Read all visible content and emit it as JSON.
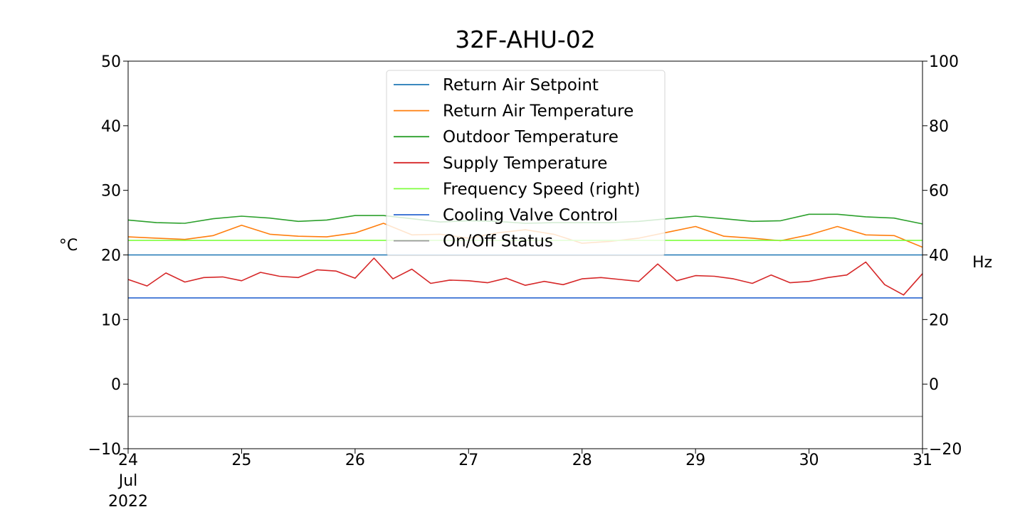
{
  "chart_data": {
    "type": "line",
    "title": "32F-AHU-02",
    "ylabel_left": "°C",
    "ylabel_right": "Hz",
    "ylim_left": [
      -10,
      50
    ],
    "ylim_right": [
      -20,
      100
    ],
    "yticks_left": [
      "−10",
      "0",
      "10",
      "20",
      "30",
      "40",
      "50"
    ],
    "yticks_right": [
      "−20",
      "0",
      "20",
      "40",
      "60",
      "80",
      "100"
    ],
    "xlim": [
      "2022-07-24",
      "2022-07-31"
    ],
    "xticks": [
      {
        "day": "24",
        "month": "Jul",
        "year": "2022"
      },
      {
        "day": "25"
      },
      {
        "day": "26"
      },
      {
        "day": "27"
      },
      {
        "day": "28"
      },
      {
        "day": "29"
      },
      {
        "day": "30"
      },
      {
        "day": "31"
      }
    ],
    "legend_position": "top-center",
    "grid": false,
    "series": [
      {
        "name": "Return Air Setpoint",
        "axis": "left",
        "color": "#1f77b4",
        "x": [
          "2022-07-24T00:00",
          "2022-07-31T00:00"
        ],
        "y": [
          20,
          20
        ]
      },
      {
        "name": "Return Air Temperature",
        "axis": "left",
        "color": "#ff7f0e",
        "x": [
          "2022-07-24T00:00",
          "2022-07-24T06:00",
          "2022-07-24T12:00",
          "2022-07-24T18:00",
          "2022-07-25T00:00",
          "2022-07-25T06:00",
          "2022-07-25T12:00",
          "2022-07-25T18:00",
          "2022-07-26T00:00",
          "2022-07-26T06:00",
          "2022-07-26T12:00",
          "2022-07-26T18:00",
          "2022-07-27T00:00",
          "2022-07-27T06:00",
          "2022-07-27T12:00",
          "2022-07-27T18:00",
          "2022-07-28T00:00",
          "2022-07-28T06:00",
          "2022-07-28T12:00",
          "2022-07-28T18:00",
          "2022-07-29T00:00",
          "2022-07-29T06:00",
          "2022-07-29T12:00",
          "2022-07-29T18:00",
          "2022-07-30T00:00",
          "2022-07-30T06:00",
          "2022-07-30T12:00",
          "2022-07-30T18:00",
          "2022-07-31T00:00"
        ],
        "y": [
          22.8,
          22.6,
          22.4,
          23.0,
          24.6,
          23.2,
          22.9,
          22.8,
          23.4,
          24.9,
          23.1,
          23.2,
          22.6,
          23.4,
          23.9,
          23.2,
          21.8,
          22.1,
          22.6,
          23.5,
          24.4,
          22.9,
          22.6,
          22.2,
          23.1,
          24.4,
          23.1,
          23.0,
          21.2
        ]
      },
      {
        "name": "Outdoor Temperature",
        "axis": "left",
        "color": "#2ca02c",
        "x": [
          "2022-07-24T00:00",
          "2022-07-24T06:00",
          "2022-07-24T12:00",
          "2022-07-24T18:00",
          "2022-07-25T00:00",
          "2022-07-25T06:00",
          "2022-07-25T12:00",
          "2022-07-25T18:00",
          "2022-07-26T00:00",
          "2022-07-26T06:00",
          "2022-07-26T12:00",
          "2022-07-26T18:00",
          "2022-07-27T00:00",
          "2022-07-27T06:00",
          "2022-07-27T12:00",
          "2022-07-27T18:00",
          "2022-07-28T00:00",
          "2022-07-28T06:00",
          "2022-07-28T12:00",
          "2022-07-28T18:00",
          "2022-07-29T00:00",
          "2022-07-29T06:00",
          "2022-07-29T12:00",
          "2022-07-29T18:00",
          "2022-07-30T00:00",
          "2022-07-30T06:00",
          "2022-07-30T12:00",
          "2022-07-30T18:00",
          "2022-07-31T00:00"
        ],
        "y": [
          25.4,
          25.0,
          24.9,
          25.6,
          26.0,
          25.7,
          25.2,
          25.4,
          26.1,
          26.1,
          25.6,
          25.1,
          25.3,
          25.2,
          24.9,
          25.0,
          25.0,
          25.0,
          25.2,
          25.6,
          26.0,
          25.6,
          25.2,
          25.3,
          26.3,
          26.3,
          25.9,
          25.7,
          24.8
        ]
      },
      {
        "name": "Supply Temperature",
        "axis": "left",
        "color": "#d62728",
        "x": [
          "2022-07-24T00:00",
          "2022-07-24T04:00",
          "2022-07-24T08:00",
          "2022-07-24T12:00",
          "2022-07-24T16:00",
          "2022-07-24T20:00",
          "2022-07-25T00:00",
          "2022-07-25T04:00",
          "2022-07-25T08:00",
          "2022-07-25T12:00",
          "2022-07-25T16:00",
          "2022-07-25T20:00",
          "2022-07-26T00:00",
          "2022-07-26T04:00",
          "2022-07-26T08:00",
          "2022-07-26T12:00",
          "2022-07-26T16:00",
          "2022-07-26T20:00",
          "2022-07-27T00:00",
          "2022-07-27T04:00",
          "2022-07-27T08:00",
          "2022-07-27T12:00",
          "2022-07-27T16:00",
          "2022-07-27T20:00",
          "2022-07-28T00:00",
          "2022-07-28T04:00",
          "2022-07-28T08:00",
          "2022-07-28T12:00",
          "2022-07-28T16:00",
          "2022-07-28T20:00",
          "2022-07-29T00:00",
          "2022-07-29T04:00",
          "2022-07-29T08:00",
          "2022-07-29T12:00",
          "2022-07-29T16:00",
          "2022-07-29T20:00",
          "2022-07-30T00:00",
          "2022-07-30T04:00",
          "2022-07-30T08:00",
          "2022-07-30T12:00",
          "2022-07-30T16:00",
          "2022-07-30T20:00",
          "2022-07-31T00:00"
        ],
        "y": [
          16.2,
          15.2,
          17.2,
          15.8,
          16.5,
          16.6,
          16.0,
          17.3,
          16.7,
          16.5,
          17.7,
          17.5,
          16.4,
          19.5,
          16.3,
          17.8,
          15.6,
          16.1,
          16.0,
          15.7,
          16.4,
          15.3,
          15.9,
          15.4,
          16.3,
          16.5,
          16.2,
          15.9,
          18.6,
          16.0,
          16.8,
          16.7,
          16.3,
          15.6,
          16.9,
          15.7,
          15.9,
          16.5,
          16.9,
          18.9,
          15.4,
          13.8,
          17.1
        ]
      },
      {
        "name": "Frequency Speed (right)",
        "axis": "right",
        "color": "#7fff3f",
        "x": [
          "2022-07-24T00:00",
          "2022-07-31T00:00"
        ],
        "y": [
          44.5,
          44.5
        ]
      },
      {
        "name": "Cooling Valve Control",
        "axis": "right",
        "color": "#2a66d0",
        "x": [
          "2022-07-24T00:00",
          "2022-07-31T00:00"
        ],
        "y": [
          26.7,
          26.7
        ]
      },
      {
        "name": "On/Off Status",
        "axis": "right",
        "color": "#999999",
        "x": [
          "2022-07-24T00:00",
          "2022-07-31T00:00"
        ],
        "y": [
          -10,
          -10
        ]
      }
    ]
  }
}
